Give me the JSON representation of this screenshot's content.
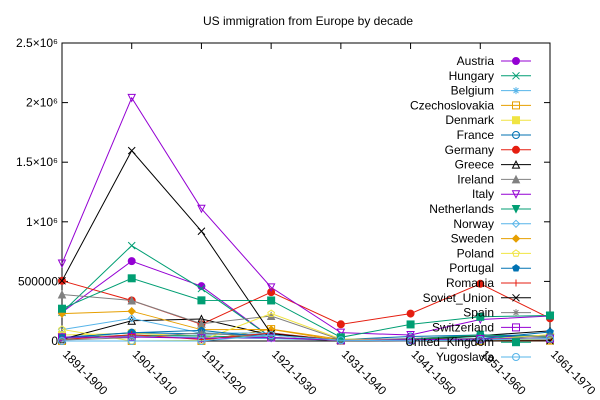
{
  "chart_data": {
    "type": "line",
    "title": "US immigration from Europe by decade",
    "xlabel": "",
    "ylabel": "",
    "categories": [
      "1891-1900",
      "1901-1910",
      "1911-1920",
      "1921-1930",
      "1931-1940",
      "1941-1950",
      "1951-1960",
      "1961-1970"
    ],
    "ylim": [
      0,
      2500000
    ],
    "yticks": [
      {
        "value": 0,
        "label": "0"
      },
      {
        "value": 500000,
        "label": "500000"
      },
      {
        "value": 1000000,
        "label": "1×10⁶"
      },
      {
        "value": 1500000,
        "label": "1.5×10⁶"
      },
      {
        "value": 2000000,
        "label": "2×10⁶"
      },
      {
        "value": 2500000,
        "label": "2.5×10⁶"
      }
    ],
    "grid": false,
    "legend_position": "top-right",
    "series": [
      {
        "name": "Austria",
        "color": "#9400d3",
        "marker": "circle-filled",
        "values": [
          240000,
          670000,
          460000,
          30000,
          5000,
          20000,
          40000,
          30000
        ]
      },
      {
        "name": "Hungary",
        "color": "#009e73",
        "marker": "x",
        "values": [
          240000,
          800000,
          440000,
          30000,
          7000,
          4000,
          40000,
          5000
        ]
      },
      {
        "name": "Belgium",
        "color": "#56b4e9",
        "marker": "asterisk",
        "values": [
          20000,
          40000,
          30000,
          20000,
          5000,
          12000,
          18000,
          10000
        ]
      },
      {
        "name": "Czechoslovakia",
        "color": "#e69f00",
        "marker": "square-open",
        "values": [
          0,
          0,
          0,
          100000,
          14000,
          8000,
          1000,
          3000
        ]
      },
      {
        "name": "Denmark",
        "color": "#f0e442",
        "marker": "square-filled",
        "values": [
          50000,
          65000,
          40000,
          32000,
          2000,
          5000,
          10000,
          9000
        ]
      },
      {
        "name": "France",
        "color": "#0072b2",
        "marker": "circle-open",
        "values": [
          30000,
          70000,
          60000,
          50000,
          12000,
          38000,
          50000,
          45000
        ]
      },
      {
        "name": "Germany",
        "color": "#e51e10",
        "marker": "circle-filled",
        "values": [
          505000,
          340000,
          140000,
          410000,
          140000,
          230000,
          480000,
          190000
        ]
      },
      {
        "name": "Greece",
        "color": "#000000",
        "marker": "triangle-open",
        "values": [
          15000,
          170000,
          185000,
          50000,
          9000,
          9000,
          45000,
          85000
        ]
      },
      {
        "name": "Ireland",
        "color": "#808080",
        "marker": "triangle-filled",
        "values": [
          390000,
          340000,
          145000,
          210000,
          11000,
          20000,
          48000,
          33000
        ]
      },
      {
        "name": "Italy",
        "color": "#9400d3",
        "marker": "triangle-down-open",
        "values": [
          650000,
          2040000,
          1110000,
          450000,
          70000,
          50000,
          180000,
          210000
        ]
      },
      {
        "name": "Netherlands",
        "color": "#009e73",
        "marker": "triangle-down-filled",
        "values": [
          27000,
          48000,
          43000,
          27000,
          7000,
          14000,
          52000,
          30000
        ]
      },
      {
        "name": "Norway",
        "color": "#56b4e9",
        "marker": "diamond-open",
        "values": [
          95000,
          190000,
          66000,
          68000,
          4000,
          10000,
          22000,
          15000
        ]
      },
      {
        "name": "Sweden",
        "color": "#e69f00",
        "marker": "diamond-filled",
        "values": [
          230000,
          250000,
          95000,
          97000,
          3000,
          10000,
          21000,
          17000
        ]
      },
      {
        "name": "Poland",
        "color": "#f0e442",
        "marker": "pentagon-open",
        "values": [
          97000,
          0,
          5000,
          230000,
          17000,
          7000,
          10000,
          53000
        ]
      },
      {
        "name": "Portugal",
        "color": "#0072b2",
        "marker": "pentagon-filled",
        "values": [
          27000,
          69000,
          89000,
          29000,
          3000,
          7000,
          19000,
          76000
        ]
      },
      {
        "name": "Romania",
        "color": "#e51e10",
        "marker": "plus",
        "values": [
          12000,
          53000,
          13000,
          67000,
          4000,
          1000,
          1000,
          3000
        ]
      },
      {
        "name": "Soviet_Union",
        "color": "#000000",
        "marker": "x",
        "values": [
          505000,
          1597000,
          921000,
          62000,
          1000,
          600,
          500,
          2000
        ]
      },
      {
        "name": "Spain",
        "color": "#808080",
        "marker": "asterisk",
        "values": [
          8000,
          28000,
          68000,
          28000,
          3000,
          3000,
          8000,
          44000
        ]
      },
      {
        "name": "Switzerland",
        "color": "#9400d3",
        "marker": "square-open",
        "values": [
          31000,
          34000,
          23000,
          29000,
          5000,
          10000,
          17000,
          19000
        ]
      },
      {
        "name": "United_Kingdom",
        "color": "#009e73",
        "marker": "square-filled",
        "values": [
          271000,
          526000,
          341000,
          340000,
          31000,
          139000,
          203000,
          214000
        ]
      },
      {
        "name": "Yugoslavia",
        "color": "#56b4e9",
        "marker": "circle-open",
        "values": [
          0,
          0,
          0,
          49000,
          6000,
          2000,
          9000,
          20000
        ]
      }
    ]
  }
}
